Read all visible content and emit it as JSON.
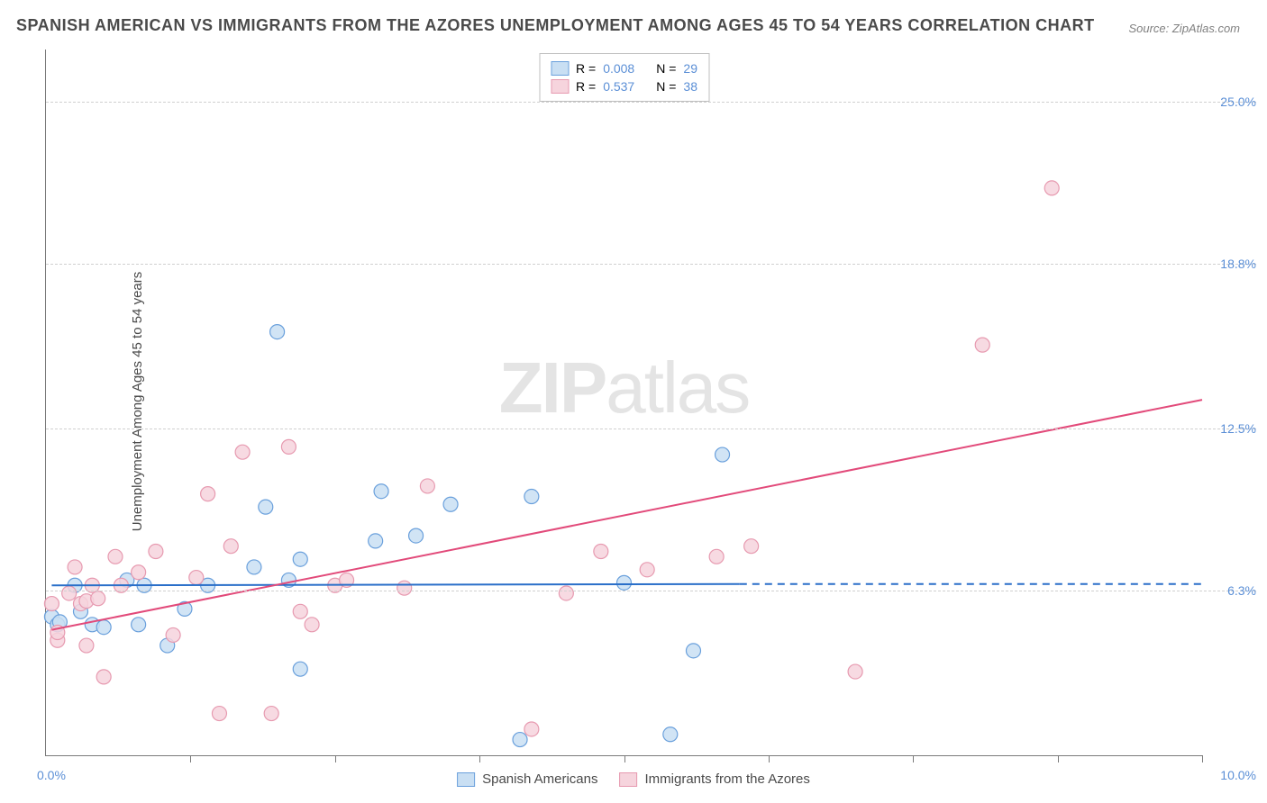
{
  "title": "SPANISH AMERICAN VS IMMIGRANTS FROM THE AZORES UNEMPLOYMENT AMONG AGES 45 TO 54 YEARS CORRELATION CHART",
  "source": "Source: ZipAtlas.com",
  "y_axis_label": "Unemployment Among Ages 45 to 54 years",
  "watermark_bold": "ZIP",
  "watermark_light": "atlas",
  "chart": {
    "type": "scatter",
    "xlim": [
      0,
      10
    ],
    "ylim": [
      0,
      27
    ],
    "x_origin_label": "0.0%",
    "x_max_label": "10.0%",
    "x_ticks": [
      1.25,
      2.5,
      3.75,
      5.0,
      6.25,
      7.5,
      8.75,
      10.0
    ],
    "y_ticks": [
      {
        "v": 6.3,
        "label": "6.3%"
      },
      {
        "v": 12.5,
        "label": "12.5%"
      },
      {
        "v": 18.8,
        "label": "18.8%"
      },
      {
        "v": 25.0,
        "label": "25.0%"
      }
    ],
    "grid_color": "#d0d0d0",
    "axis_color": "#7a7a7a",
    "background_color": "#ffffff",
    "marker_radius": 8,
    "marker_stroke_width": 1.2,
    "line_width": 2,
    "series": [
      {
        "name": "Spanish Americans",
        "fill": "#c9dff3",
        "stroke": "#6aa0dc",
        "line_color": "#2a6fc9",
        "R": "0.008",
        "N": "29",
        "trend": {
          "x0": 0.05,
          "y0": 6.5,
          "x1": 6.0,
          "y1": 6.55
        },
        "trend_dash": {
          "x0": 6.0,
          "y0": 6.55,
          "x1": 10.0,
          "y1": 6.55
        },
        "points": [
          [
            0.05,
            5.3
          ],
          [
            0.1,
            5.0
          ],
          [
            0.12,
            5.1
          ],
          [
            0.25,
            6.5
          ],
          [
            0.3,
            5.5
          ],
          [
            0.4,
            5.0
          ],
          [
            0.5,
            4.9
          ],
          [
            0.7,
            6.7
          ],
          [
            0.8,
            5.0
          ],
          [
            0.85,
            6.5
          ],
          [
            1.05,
            4.2
          ],
          [
            1.2,
            5.6
          ],
          [
            1.4,
            6.5
          ],
          [
            1.8,
            7.2
          ],
          [
            1.9,
            9.5
          ],
          [
            2.0,
            16.2
          ],
          [
            2.1,
            6.7
          ],
          [
            2.2,
            3.3
          ],
          [
            2.2,
            7.5
          ],
          [
            2.85,
            8.2
          ],
          [
            2.9,
            10.1
          ],
          [
            3.2,
            8.4
          ],
          [
            3.5,
            9.6
          ],
          [
            4.1,
            0.6
          ],
          [
            4.2,
            9.9
          ],
          [
            5.0,
            6.6
          ],
          [
            5.4,
            0.8
          ],
          [
            5.6,
            4.0
          ],
          [
            5.85,
            11.5
          ]
        ]
      },
      {
        "name": "Immigrants from the Azores",
        "fill": "#f6d4dd",
        "stroke": "#e79ab0",
        "line_color": "#e24a7a",
        "R": "0.537",
        "N": "38",
        "trend": {
          "x0": 0.05,
          "y0": 4.8,
          "x1": 10.0,
          "y1": 13.6
        },
        "trend_dash": null,
        "points": [
          [
            0.05,
            5.8
          ],
          [
            0.1,
            4.4
          ],
          [
            0.1,
            4.7
          ],
          [
            0.2,
            6.2
          ],
          [
            0.25,
            7.2
          ],
          [
            0.3,
            5.8
          ],
          [
            0.35,
            5.9
          ],
          [
            0.35,
            4.2
          ],
          [
            0.4,
            6.5
          ],
          [
            0.45,
            6.0
          ],
          [
            0.5,
            3.0
          ],
          [
            0.6,
            7.6
          ],
          [
            0.65,
            6.5
          ],
          [
            0.8,
            7.0
          ],
          [
            0.95,
            7.8
          ],
          [
            1.1,
            4.6
          ],
          [
            1.3,
            6.8
          ],
          [
            1.4,
            10.0
          ],
          [
            1.5,
            1.6
          ],
          [
            1.6,
            8.0
          ],
          [
            1.7,
            11.6
          ],
          [
            1.95,
            1.6
          ],
          [
            2.1,
            11.8
          ],
          [
            2.2,
            5.5
          ],
          [
            2.3,
            5.0
          ],
          [
            2.5,
            6.5
          ],
          [
            2.6,
            6.7
          ],
          [
            3.1,
            6.4
          ],
          [
            3.3,
            10.3
          ],
          [
            4.2,
            1.0
          ],
          [
            4.5,
            6.2
          ],
          [
            4.8,
            7.8
          ],
          [
            5.2,
            7.1
          ],
          [
            5.8,
            7.6
          ],
          [
            6.1,
            8.0
          ],
          [
            7.0,
            3.2
          ],
          [
            8.1,
            15.7
          ],
          [
            8.7,
            21.7
          ]
        ]
      }
    ]
  },
  "legend_top": {
    "R_label": "R =",
    "N_label": "N ="
  }
}
